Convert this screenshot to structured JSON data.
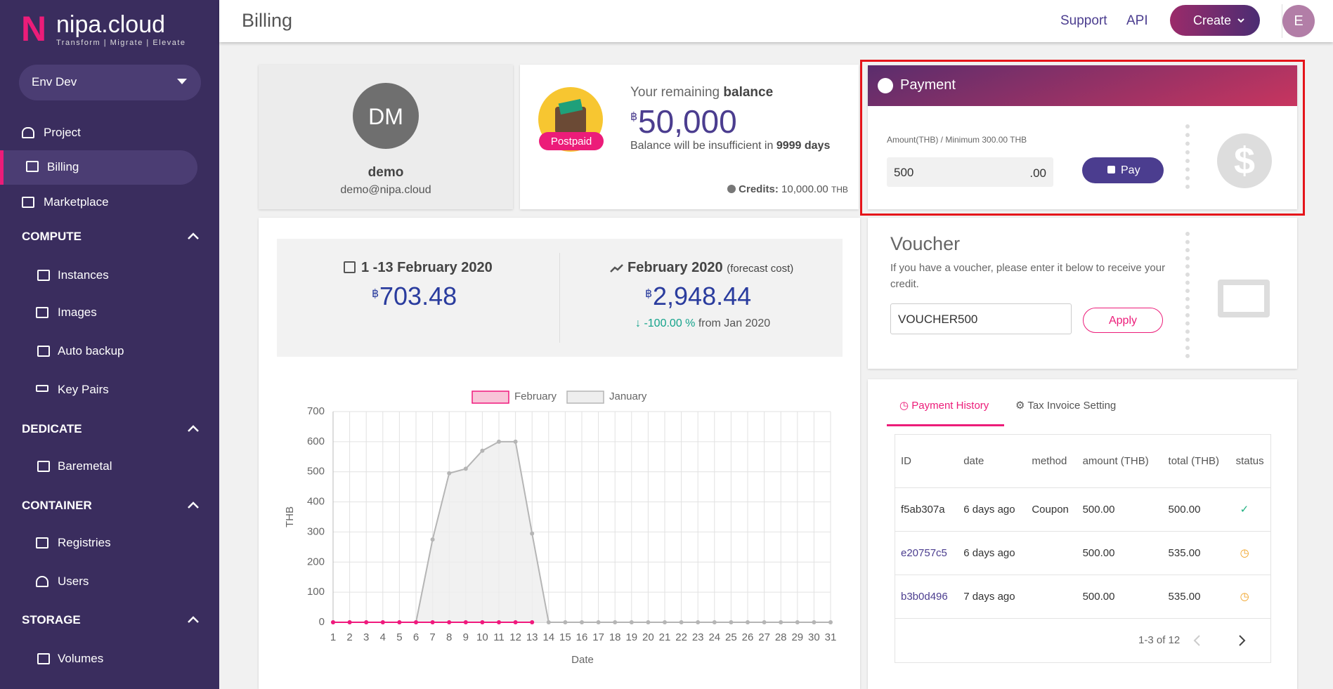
{
  "sidebar": {
    "logo_letter": "N",
    "brand": "nipa.cloud",
    "tagline": "Transform | Migrate | Elevate",
    "env": "Env Dev",
    "items": [
      "Project",
      "Billing",
      "Marketplace"
    ],
    "sections": [
      {
        "title": "COMPUTE",
        "items": [
          "Instances",
          "Images",
          "Auto backup",
          "Key Pairs"
        ]
      },
      {
        "title": "DEDICATE",
        "items": [
          "Baremetal"
        ]
      },
      {
        "title": "CONTAINER",
        "items": [
          "Registries",
          "Users"
        ]
      },
      {
        "title": "STORAGE",
        "items": [
          "Volumes"
        ]
      }
    ]
  },
  "header": {
    "title": "Billing",
    "links": [
      "Support",
      "API"
    ],
    "create": "Create",
    "avatar": "E"
  },
  "profile": {
    "initials": "DM",
    "name": "demo",
    "email": "demo@nipa.cloud"
  },
  "balance": {
    "badge": "Postpaid",
    "label": "Your remaining",
    "label_bold": "balance",
    "currency": "฿",
    "amount": "50,000",
    "note": "Balance will be insufficient in",
    "note_bold": "9999 days",
    "credits_label": "Credits:",
    "credits": "10,000.00",
    "credits_unit": "THB"
  },
  "payment": {
    "title": "Payment",
    "amount_label": "Amount(THB) / Minimum 300.00 THB",
    "amount": "500",
    "suffix": ".00",
    "button": "Pay"
  },
  "voucher": {
    "title": "Voucher",
    "description": "If you have a voucher, please enter it below to receive your credit.",
    "code": "VOUCHER500",
    "button": "Apply"
  },
  "cost": {
    "period": "1 -13 February 2020",
    "currency": "฿",
    "amount": "703.48",
    "forecast_period": "February 2020",
    "forecast_note": "(forecast cost)",
    "forecast_amount": "2,948.44",
    "change": "-100.00 %",
    "change_note": "from Jan 2020"
  },
  "chart_data": {
    "type": "line",
    "categories": [
      1,
      2,
      3,
      4,
      5,
      6,
      7,
      8,
      9,
      10,
      11,
      12,
      13,
      14,
      15,
      16,
      17,
      18,
      19,
      20,
      21,
      22,
      23,
      24,
      25,
      26,
      27,
      28,
      29,
      30,
      31
    ],
    "series": [
      {
        "name": "February",
        "color": "#f0197d",
        "fill": "#f8c5d8",
        "values": [
          0,
          0,
          0,
          0,
          0,
          0,
          0,
          0,
          0,
          0,
          0,
          0,
          0,
          null,
          null,
          null,
          null,
          null,
          null,
          null,
          null,
          null,
          null,
          null,
          null,
          null,
          null,
          null,
          null,
          null,
          null
        ]
      },
      {
        "name": "January",
        "color": "#b5b5b5",
        "fill": "#eeeeee",
        "values": [
          0,
          0,
          0,
          0,
          0,
          0,
          275,
          495,
          510,
          570,
          600,
          600,
          295,
          0,
          0,
          0,
          0,
          0,
          0,
          0,
          0,
          0,
          0,
          0,
          0,
          0,
          0,
          0,
          0,
          0,
          0
        ]
      }
    ],
    "ylim": [
      0,
      700
    ],
    "yticks": [
      0,
      100,
      200,
      300,
      400,
      500,
      600,
      700
    ],
    "xlabel": "Date",
    "ylabel": "THB",
    "grid": true
  },
  "history": {
    "tabs": [
      "Payment History",
      "Tax Invoice Setting"
    ],
    "columns": [
      "ID",
      "date",
      "method",
      "amount (THB)",
      "total (THB)",
      "status"
    ],
    "rows": [
      [
        "f5ab307a",
        "6 days ago",
        "Coupon",
        "500.00",
        "500.00"
      ],
      [
        "e20757c5",
        "6 days ago",
        "",
        "500.00",
        "535.00"
      ],
      [
        "b3b0d496",
        "7 days ago",
        "",
        "500.00",
        "535.00"
      ]
    ],
    "pagination": "1-3 of 12"
  }
}
